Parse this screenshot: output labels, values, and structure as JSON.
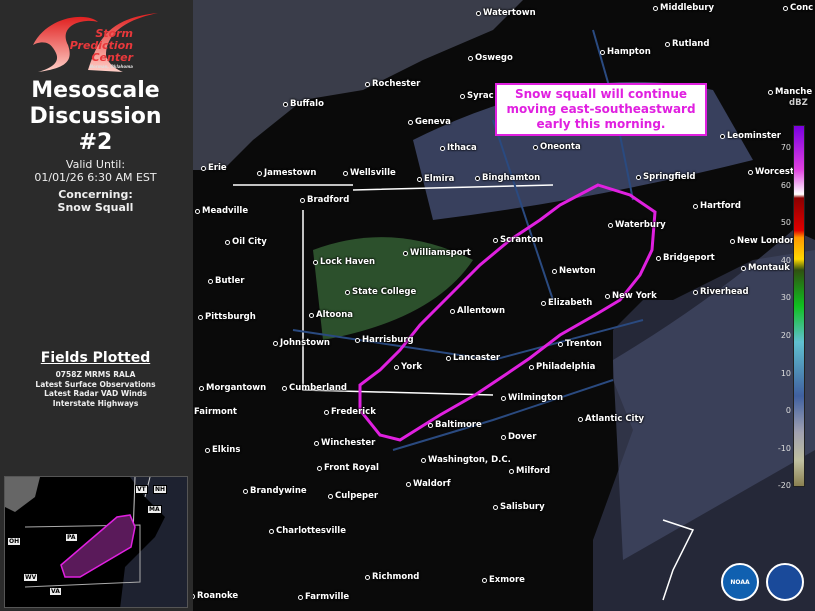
{
  "sidebar": {
    "logo": {
      "line1": "Storm",
      "line2": "Prediction",
      "line3": "Center",
      "line4": "Norman, Oklahoma"
    },
    "title_line1": "Mesoscale",
    "title_line2": "Discussion",
    "title_line3": "#2",
    "valid_label": "Valid Until:",
    "valid_time": "01/01/26 6:30 AM EST",
    "concerning_label": "Concerning:",
    "concerning_value": "Snow Squall",
    "fields_title": "Fields Plotted",
    "fields": [
      "0758Z MRMS RALA",
      "Latest Surface Observations",
      "Latest Radar VAD Winds",
      "Interstate Highways"
    ]
  },
  "inset": {
    "states": [
      "VT",
      "NH",
      "MA",
      "PA",
      "OH",
      "WV",
      "VA"
    ]
  },
  "map": {
    "annotation_line1": "Snow squall will continue",
    "annotation_line2": "moving east-southeastward",
    "annotation_line3": "early this morning.",
    "colorbar_unit": "dBZ",
    "colorbar_ticks": [
      "70",
      "60",
      "50",
      "40",
      "30",
      "20",
      "10",
      "0",
      "-10",
      "-20"
    ],
    "area_color": "#e020e0",
    "cities": [
      "Watertown",
      "Middlebury",
      "Conc",
      "Oswego",
      "Hampton",
      "Rutland",
      "Rochester",
      "Syrac",
      "Manche",
      "Buffalo",
      "Geneva",
      "Leominster",
      "Oneonta",
      "Ithaca",
      "Springfield",
      "Worcest",
      "Erie",
      "Jamestown",
      "Wellsville",
      "Elmira",
      "Binghamton",
      "Bradford",
      "Hartford",
      "Meadville",
      "Waterbury",
      "Scranton",
      "New London",
      "Oil City",
      "Williamsport",
      "Bridgeport",
      "Lock Haven",
      "Newton",
      "Montauk",
      "Butler",
      "State College",
      "Riverhead",
      "Elizabeth",
      "New York",
      "Pittsburgh",
      "Altoona",
      "Allentown",
      "Johnstown",
      "Harrisburg",
      "Trenton",
      "Lancaster",
      "Philadelphia",
      "Morgantown",
      "Cumberland",
      "York",
      "Wilmington",
      "Fairmont",
      "Frederick",
      "Atlantic City",
      "Baltimore",
      "Winchester",
      "Elkins",
      "Dover",
      "Washington, D.C.",
      "Front Royal",
      "Milford",
      "Waldorf",
      "Brandywine",
      "Culpeper",
      "Salisbury",
      "Charlottesville",
      "Richmond",
      "Exmore",
      "Roanoke",
      "Farmville"
    ],
    "logos": {
      "noaa": "NOAA",
      "nws": "NATIONAL WEATHER SERVICE"
    }
  }
}
